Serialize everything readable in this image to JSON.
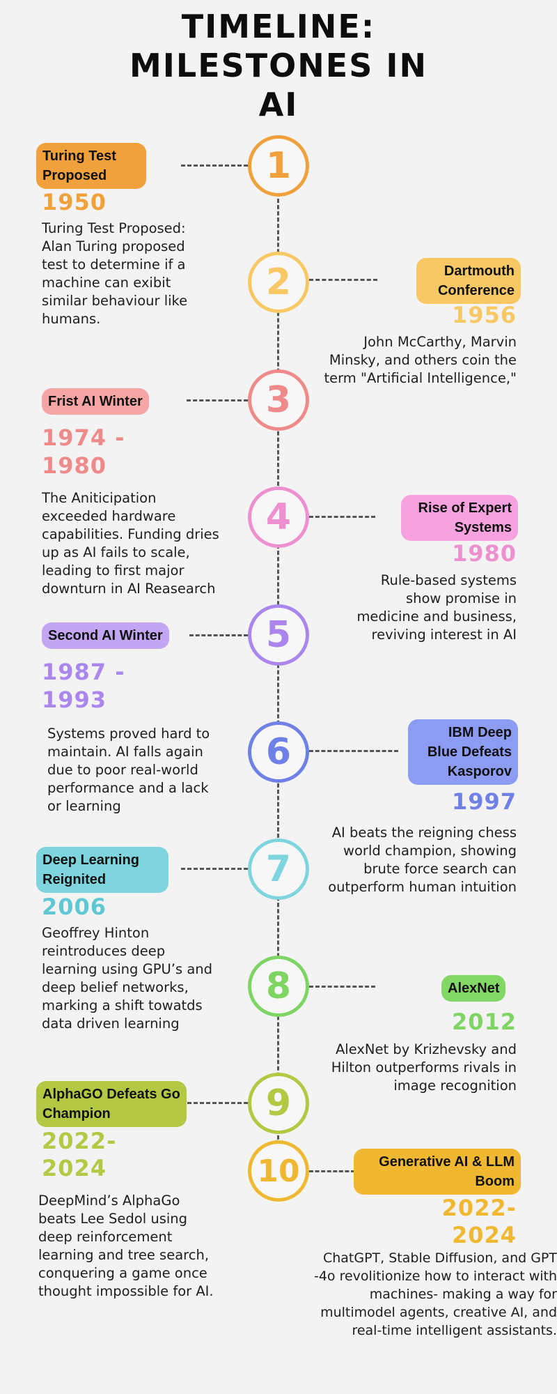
{
  "title": {
    "line1": "TIMELINE:",
    "line2": "MILESTONES IN",
    "line3": "AI"
  },
  "colors": {
    "m1": "#f0a13c",
    "m2": "#f8c865",
    "m3": "#ef8a8a",
    "m4": "#ee8fcf",
    "m5": "#ab86ec",
    "m6": "#6f80e6",
    "m7": "#7fd5dd",
    "m8": "#7fd563",
    "m9": "#b5c844",
    "m10": "#f0b730"
  },
  "milestones": [
    {
      "number": "1",
      "label": "Turing Test Proposed",
      "year": "1950",
      "description": "Turing Test Proposed: Alan Turing proposed test to determine if a machine can exibit similar behaviour like humans."
    },
    {
      "number": "2",
      "label": "Dartmouth Conference",
      "year": "1956",
      "description": "John McCarthy, Marvin Minsky, and others coin the term \"Artificial Intelligence,\""
    },
    {
      "number": "3",
      "label": "Frist AI Winter",
      "year_line1": "1974 -",
      "year_line2": "1980",
      "description": "The Aniticipation exceeded hardware capabilities. Funding dries up as AI fails to scale, leading to first major downturn in AI Reasearch"
    },
    {
      "number": "4",
      "label": "Rise of Expert Systems",
      "year": "1980",
      "description": "Rule-based systems show promise in medicine and business, reviving interest in AI"
    },
    {
      "number": "5",
      "label": "Second AI Winter",
      "year_line1": "1987 -",
      "year_line2": "1993",
      "description": "Systems proved hard to maintain. AI falls again due to poor real-world performance and a lack or learning"
    },
    {
      "number": "6",
      "label": "IBM Deep Blue Defeats Kasporov",
      "year": "1997",
      "description": "AI beats the reigning chess world champion, showing brute force search can outperform human intuition"
    },
    {
      "number": "7",
      "label": "Deep Learning Reignited",
      "year": "2006",
      "description": "Geoffrey Hinton reintroduces deep learning using GPU’s and deep belief networks, marking a shift towatds data driven learning"
    },
    {
      "number": "8",
      "label": "AlexNet",
      "year": "2012",
      "description": "AlexNet by Krizhevsky and Hilton outperforms rivals in image recognition"
    },
    {
      "number": "9",
      "label": "AlphaGO Defeats Go Champion",
      "year_line1": "2022-",
      "year_line2": "2024",
      "description": "DeepMind’s AlphaGo beats Lee Sedol using deep reinforcement learning and tree search, conquering a game once thought impossible for AI."
    },
    {
      "number": "10",
      "label": "Generative AI & LLM Boom",
      "year_line1": "2022-",
      "year_line2": "2024",
      "description": "ChatGPT, Stable Diffusion, and GPT -4o revolitionize how to interact with machines- making a way for multimodel agents, creative AI, and real-time intelligent assistants."
    }
  ]
}
